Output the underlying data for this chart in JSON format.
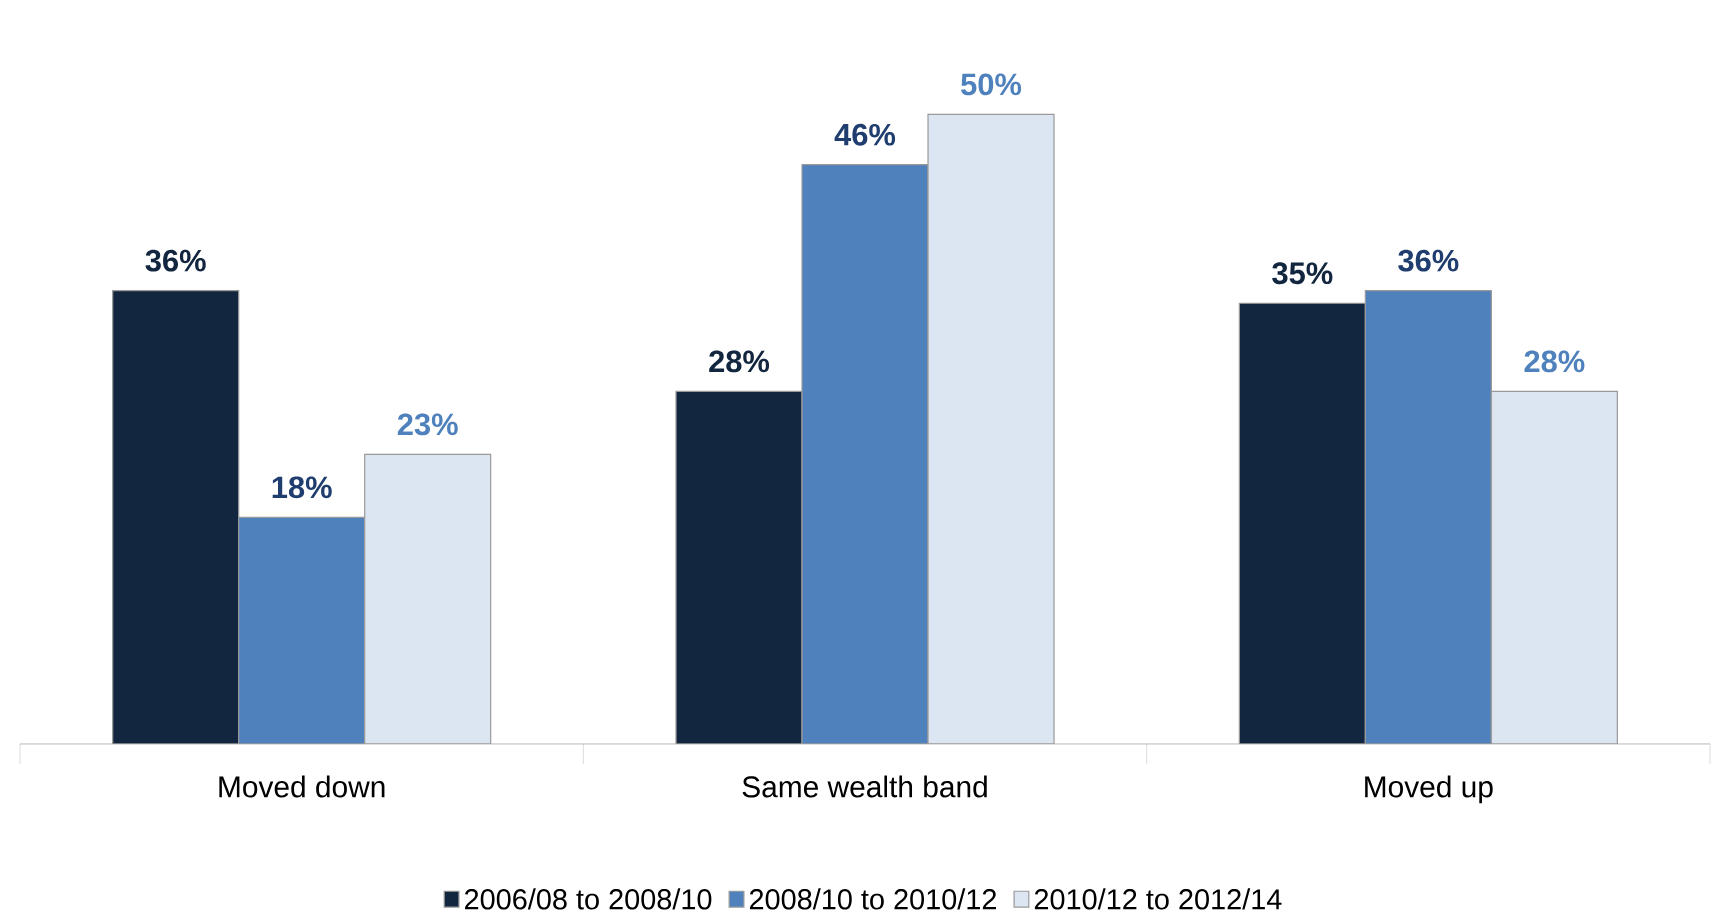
{
  "chart_data": {
    "type": "bar",
    "categories": [
      "Moved down",
      "Same wealth band",
      "Moved up"
    ],
    "series": [
      {
        "name": "2006/08 to 2008/10",
        "color": "#13263f",
        "values": [
          36,
          28,
          35
        ],
        "value_labels": [
          "36%",
          "28%",
          "35%"
        ]
      },
      {
        "name": "2008/10 to 2010/12",
        "color": "#4f81bd",
        "values": [
          18,
          46,
          36
        ],
        "value_labels": [
          "18%",
          "46%",
          "36%"
        ]
      },
      {
        "name": "2010/12 to 2012/14",
        "color": "#dce6f2",
        "values": [
          23,
          50,
          28
        ],
        "value_labels": [
          "23%",
          "50%",
          "28%"
        ]
      }
    ],
    "legend": "bottom"
  }
}
